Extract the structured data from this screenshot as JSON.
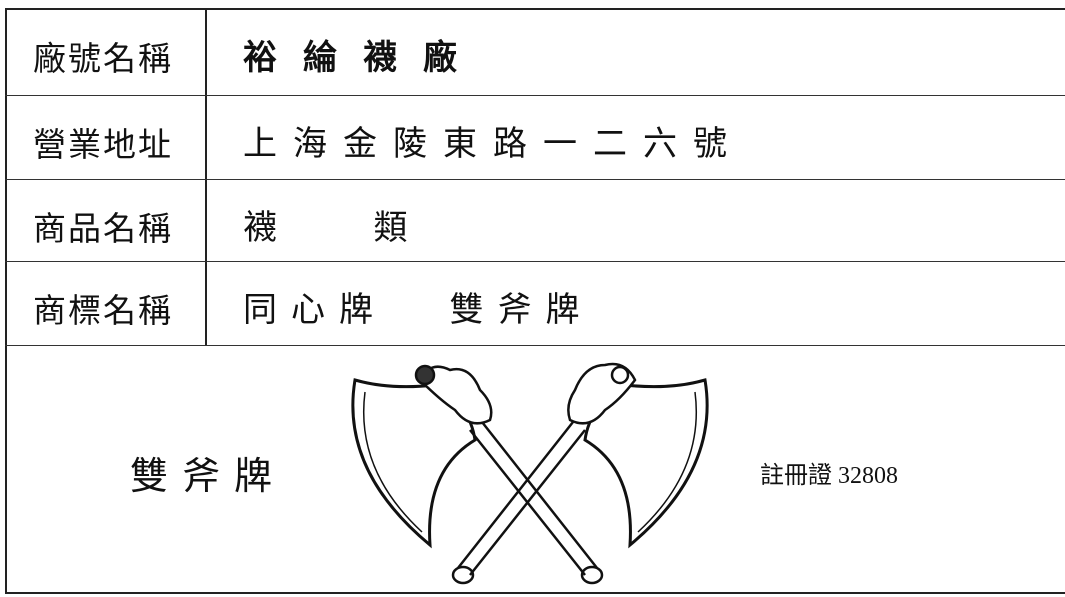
{
  "table": {
    "rows": [
      [
        "廠號名稱",
        "裕綸襪廠"
      ],
      [
        "營業地址",
        "上海金陵東路一二六號"
      ],
      [
        "商品名稱",
        "襪 類"
      ],
      [
        "商標名稱",
        "同心牌 雙斧牌"
      ]
    ]
  },
  "mark": {
    "name": "雙斧牌",
    "registration": "註冊證 32808"
  }
}
